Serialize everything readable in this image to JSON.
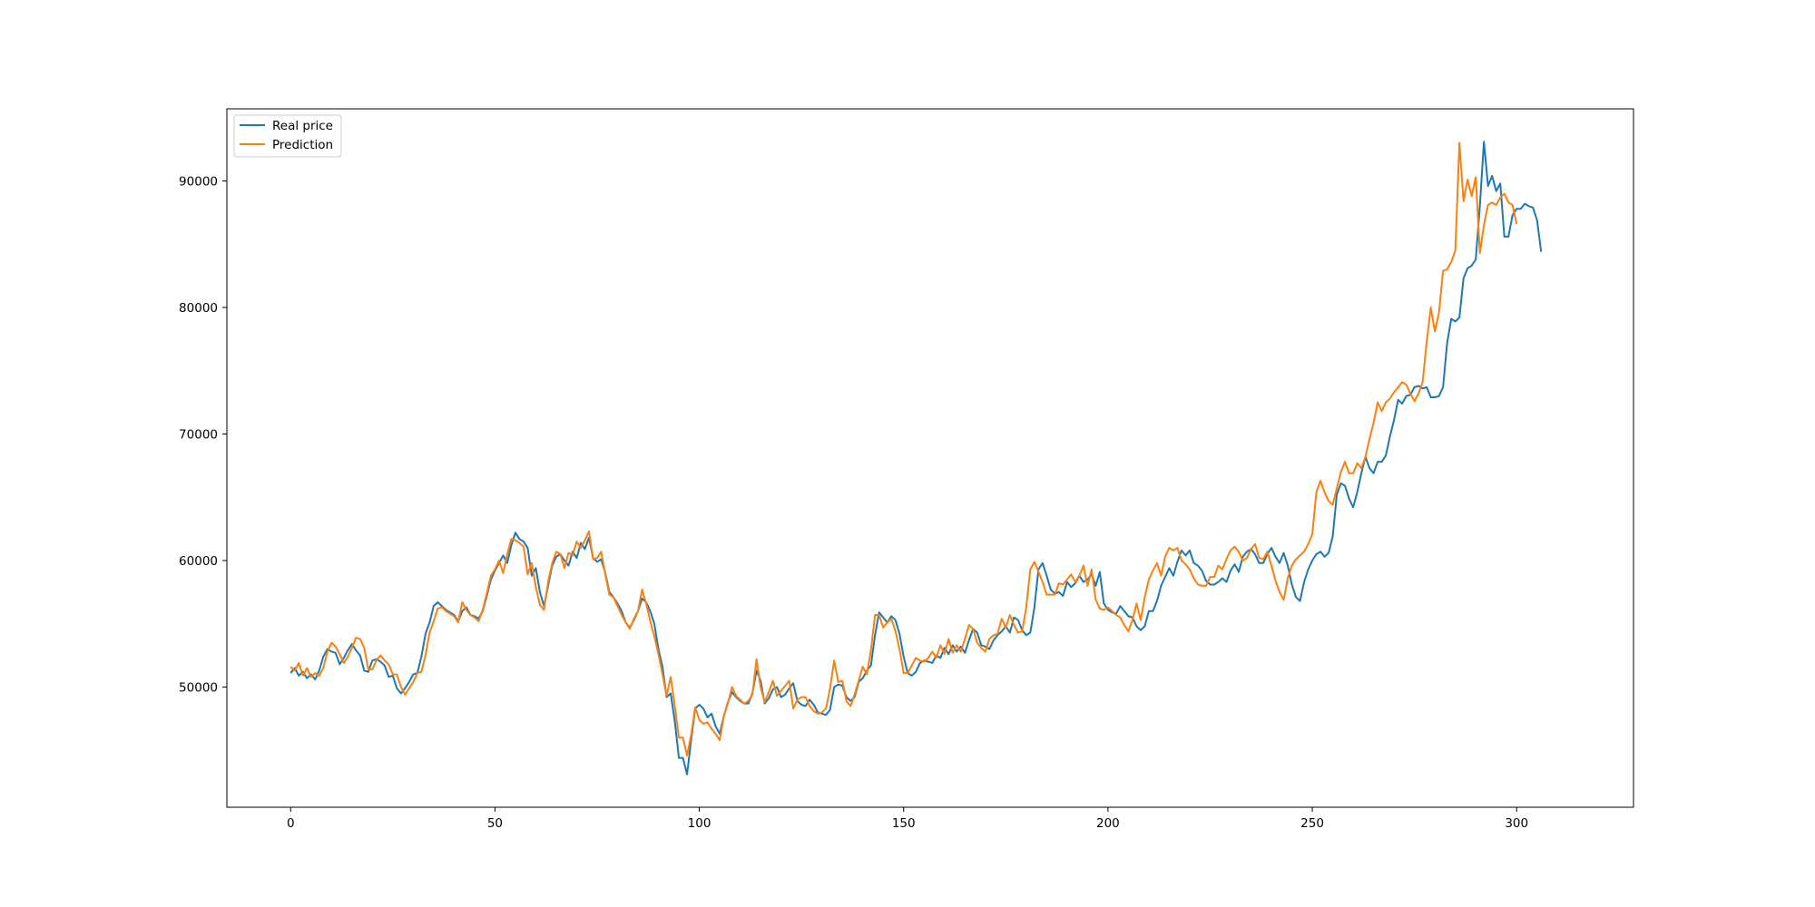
{
  "chart_data": {
    "type": "line",
    "title": "",
    "xlabel": "",
    "ylabel": "",
    "xlim": [
      -15.6,
      328.6
    ],
    "ylim": [
      40500,
      95700
    ],
    "grid": false,
    "legend": {
      "location": "upper-left"
    },
    "x_ticks": [
      0,
      50,
      100,
      150,
      200,
      250,
      300
    ],
    "y_ticks": [
      50000,
      60000,
      70000,
      80000,
      90000
    ],
    "x_tick_labels": [
      "0",
      "50",
      "100",
      "150",
      "200",
      "250",
      "300"
    ],
    "y_tick_labels": [
      "50000",
      "60000",
      "70000",
      "80000",
      "90000"
    ],
    "series": [
      {
        "name": "Real price",
        "color": "#1f77b4",
        "values": [
          51100,
          51500,
          50900,
          51200,
          50700,
          51000,
          50600,
          51300,
          52400,
          53000,
          52800,
          52700,
          51800,
          52300,
          52900,
          53400,
          52900,
          52500,
          51300,
          51200,
          52100,
          52200,
          52000,
          51700,
          50800,
          50900,
          49900,
          49500,
          49900,
          50400,
          51000,
          51100,
          52400,
          54200,
          55100,
          56400,
          56700,
          56400,
          56100,
          55900,
          55700,
          55200,
          56000,
          56300,
          55700,
          55600,
          55400,
          56000,
          57200,
          58500,
          59200,
          59800,
          60400,
          59800,
          61200,
          62200,
          61700,
          61500,
          61000,
          58800,
          59400,
          57500,
          56400,
          58000,
          59600,
          60300,
          60500,
          60000,
          59600,
          60700,
          60200,
          61400,
          60900,
          61800,
          60200,
          59900,
          60100,
          59000,
          57500,
          57100,
          56600,
          56000,
          55100,
          54700,
          55300,
          56000,
          57000,
          56700,
          56000,
          55000,
          53000,
          51600,
          49200,
          49500,
          47300,
          44400,
          44400,
          43100,
          45800,
          48300,
          48600,
          48300,
          47600,
          47900,
          46900,
          46300,
          47700,
          48800,
          49600,
          49200,
          48900,
          48700,
          48700,
          49500,
          51300,
          50500,
          48700,
          49100,
          49800,
          50000,
          49200,
          49400,
          49900,
          50300,
          48900,
          48600,
          48500,
          49000,
          48600,
          48000,
          47900,
          47800,
          48200,
          50000,
          50200,
          50100,
          49200,
          48900,
          49200,
          50400,
          50700,
          51300,
          51700,
          54100,
          55900,
          55500,
          55100,
          55600,
          55300,
          54200,
          52400,
          51100,
          50900,
          51200,
          51900,
          52100,
          52000,
          51900,
          52500,
          52300,
          53100,
          52600,
          53300,
          52800,
          53200,
          52700,
          53700,
          54600,
          54300,
          53300,
          53200,
          53000,
          53700,
          54100,
          54400,
          54800,
          54300,
          55500,
          55300,
          54500,
          54100,
          54300,
          56300,
          59300,
          59800,
          58800,
          57700,
          57400,
          57500,
          57200,
          58300,
          57900,
          58200,
          58800,
          58300,
          58500,
          58900,
          58000,
          59100,
          56600,
          56100,
          55900,
          55800,
          56400,
          56000,
          55600,
          55500,
          54800,
          54500,
          54800,
          56000,
          56000,
          56800,
          58000,
          58700,
          59400,
          58800,
          59900,
          60800,
          60400,
          60800,
          59800,
          59600,
          59200,
          58400,
          58100,
          58100,
          58300,
          58600,
          58300,
          59200,
          59700,
          59100,
          60300,
          60700,
          60900,
          60500,
          59800,
          59800,
          60500,
          61000,
          60300,
          59800,
          60600,
          59600,
          58100,
          57100,
          56800,
          58300,
          59300,
          60000,
          60500,
          60700,
          60300,
          60600,
          61900,
          65200,
          66100,
          65900,
          64900,
          64200,
          65400,
          66900,
          68200,
          67300,
          66900,
          67800,
          67800,
          68300,
          69800,
          71100,
          72700,
          72400,
          73000,
          73100,
          73700,
          73800,
          73600,
          73700,
          72900,
          72900,
          73000,
          73700,
          77200,
          79100,
          78900,
          79200,
          82300,
          83100,
          83300,
          83800,
          88000,
          93100,
          89600,
          90400,
          89200,
          89800,
          85600,
          85600,
          87300,
          87800,
          87800,
          88200,
          88000,
          87900,
          86900,
          84400
        ]
      },
      {
        "name": "Prediction",
        "color": "#ff7f0e",
        "values": [
          51600,
          51300,
          51900,
          50900,
          51500,
          50800,
          51100,
          50900,
          51500,
          52800,
          53500,
          53200,
          52600,
          51900,
          52400,
          53100,
          53900,
          53800,
          53100,
          51400,
          51400,
          52100,
          52500,
          52100,
          51800,
          51000,
          51000,
          50000,
          49400,
          49900,
          50400,
          51100,
          51200,
          52500,
          54300,
          55200,
          56200,
          56300,
          56000,
          55800,
          55600,
          55100,
          56700,
          56100,
          55700,
          55500,
          55200,
          56100,
          57400,
          58800,
          59300,
          60000,
          59000,
          60500,
          61700,
          61600,
          61400,
          61100,
          58900,
          59800,
          57900,
          56500,
          56100,
          58300,
          59800,
          60700,
          60500,
          59400,
          60600,
          60400,
          61500,
          61000,
          61600,
          62300,
          60100,
          60200,
          60700,
          58900,
          57300,
          57100,
          56400,
          55700,
          55100,
          54600,
          55400,
          56000,
          57700,
          56600,
          55200,
          54000,
          52600,
          51000,
          49300,
          50800,
          48500,
          46000,
          46000,
          44600,
          46200,
          48400,
          47400,
          47100,
          47200,
          46700,
          46300,
          45800,
          47700,
          48700,
          50000,
          49300,
          49000,
          48700,
          48900,
          49400,
          52200,
          50000,
          48800,
          49600,
          50500,
          49300,
          49700,
          50100,
          50500,
          48300,
          49000,
          49200,
          49200,
          48500,
          48100,
          47900,
          48000,
          48300,
          49900,
          52100,
          50400,
          50500,
          48900,
          48500,
          49400,
          50500,
          51600,
          51000,
          52900,
          55700,
          55700,
          54700,
          55100,
          55400,
          54400,
          53000,
          51100,
          51100,
          51700,
          52300,
          52100,
          52000,
          52300,
          52800,
          52300,
          53300,
          52600,
          53800,
          52700,
          53300,
          52800,
          53800,
          54900,
          54600,
          53500,
          53100,
          52800,
          53800,
          54100,
          54200,
          55400,
          54700,
          55700,
          54900,
          54300,
          54400,
          56300,
          59300,
          59900,
          59100,
          58300,
          57300,
          57300,
          57300,
          58200,
          58100,
          58500,
          58900,
          58300,
          58800,
          59600,
          58000,
          59300,
          56900,
          56200,
          56100,
          56300,
          56000,
          55700,
          55500,
          54900,
          54400,
          55300,
          56600,
          55300,
          57100,
          58500,
          59200,
          59800,
          58800,
          60300,
          61000,
          60800,
          61000,
          60000,
          59700,
          59300,
          58600,
          58100,
          58000,
          58000,
          58700,
          58700,
          59600,
          59300,
          60100,
          60800,
          61100,
          60700,
          60000,
          60200,
          60900,
          61300,
          60200,
          60100,
          60700,
          59600,
          58400,
          57500,
          56900,
          58600,
          59600,
          60100,
          60400,
          60700,
          61300,
          62100,
          65400,
          66300,
          65400,
          64700,
          64400,
          65700,
          67000,
          67800,
          66900,
          66900,
          67700,
          67300,
          68200,
          69600,
          70900,
          72500,
          71800,
          72500,
          72800,
          73300,
          73700,
          74100,
          73900,
          73200,
          72600,
          73200,
          74100,
          77300,
          80000,
          78100,
          79600,
          82900,
          83000,
          83600,
          84500,
          93000,
          88400,
          90100,
          88800,
          90300,
          84300,
          86500,
          88100,
          88300,
          88100,
          88700,
          89000,
          88300,
          88100,
          86600
        ]
      }
    ]
  }
}
